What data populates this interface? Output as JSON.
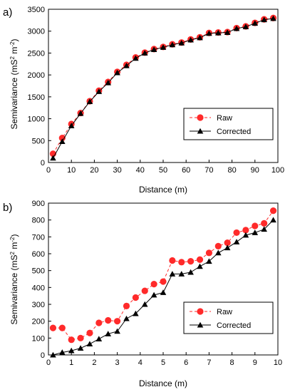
{
  "chart_data": [
    {
      "type": "line",
      "panel_label": "a)",
      "xlabel": "Distance (m)",
      "ylabel_main": "Semivariance (mS",
      "ylabel_sup": "2",
      "ylabel_mid": " m",
      "ylabel_sup2": "-2",
      "ylabel_end": ")",
      "xlim": [
        0,
        100
      ],
      "ylim": [
        0,
        3500
      ],
      "xticks": [
        0,
        10,
        20,
        30,
        40,
        50,
        60,
        70,
        80,
        90,
        100
      ],
      "yticks": [
        0,
        500,
        1000,
        1500,
        2000,
        2500,
        3000,
        3500
      ],
      "grid": false,
      "legend_position": "lower-right",
      "series": [
        {
          "name": "Raw",
          "color": "#ff2a2a",
          "marker": "circle",
          "line": "dashed",
          "x": [
            2,
            6,
            10,
            14,
            18,
            22,
            26,
            30,
            34,
            38,
            42,
            46,
            50,
            54,
            58,
            62,
            66,
            70,
            74,
            78,
            82,
            86,
            90,
            94,
            98
          ],
          "y": [
            200,
            560,
            880,
            1130,
            1400,
            1640,
            1840,
            2070,
            2230,
            2400,
            2510,
            2590,
            2640,
            2700,
            2740,
            2810,
            2860,
            2960,
            2970,
            2980,
            3070,
            3110,
            3190,
            3270,
            3300
          ]
        },
        {
          "name": "Corrected",
          "color": "#000000",
          "marker": "triangle",
          "line": "solid",
          "x": [
            2,
            6,
            10,
            14,
            18,
            22,
            26,
            30,
            34,
            38,
            42,
            46,
            50,
            54,
            58,
            62,
            66,
            70,
            74,
            78,
            82,
            86,
            90,
            94,
            98
          ],
          "y": [
            100,
            480,
            840,
            1120,
            1390,
            1620,
            1820,
            2050,
            2210,
            2380,
            2500,
            2580,
            2630,
            2690,
            2730,
            2800,
            2850,
            2950,
            2960,
            2970,
            3060,
            3100,
            3180,
            3260,
            3290
          ]
        }
      ]
    },
    {
      "type": "line",
      "panel_label": "b)",
      "xlabel": "Distance (m)",
      "ylabel_main": "Semivariance (mS",
      "ylabel_sup": "2",
      "ylabel_mid": " m",
      "ylabel_sup2": "-2",
      "ylabel_end": ")",
      "xlim": [
        0,
        10
      ],
      "ylim": [
        0,
        900
      ],
      "xticks": [
        0,
        1,
        2,
        3,
        4,
        5,
        6,
        7,
        8,
        9,
        10
      ],
      "yticks": [
        0,
        100,
        200,
        300,
        400,
        500,
        600,
        700,
        800,
        900
      ],
      "grid": false,
      "legend_position": "lower-right",
      "series": [
        {
          "name": "Raw",
          "color": "#ff2a2a",
          "marker": "circle",
          "line": "dashed",
          "x": [
            0.2,
            0.6,
            1.0,
            1.4,
            1.8,
            2.2,
            2.6,
            3.0,
            3.4,
            3.8,
            4.2,
            4.6,
            5.0,
            5.4,
            5.8,
            6.2,
            6.6,
            7.0,
            7.4,
            7.8,
            8.2,
            8.6,
            9.0,
            9.4,
            9.8
          ],
          "y": [
            160,
            160,
            90,
            100,
            130,
            190,
            205,
            200,
            290,
            340,
            380,
            420,
            435,
            560,
            550,
            555,
            565,
            605,
            645,
            665,
            725,
            740,
            765,
            780,
            855
          ]
        },
        {
          "name": "Corrected",
          "color": "#000000",
          "marker": "triangle",
          "line": "solid",
          "x": [
            0.2,
            0.6,
            1.0,
            1.4,
            1.8,
            2.2,
            2.6,
            3.0,
            3.4,
            3.8,
            4.2,
            4.6,
            5.0,
            5.4,
            5.8,
            6.2,
            6.6,
            7.0,
            7.4,
            7.8,
            8.2,
            8.6,
            9.0,
            9.4,
            9.8
          ],
          "y": [
            0,
            15,
            25,
            40,
            65,
            95,
            125,
            140,
            215,
            245,
            300,
            355,
            370,
            480,
            480,
            490,
            525,
            555,
            605,
            635,
            670,
            710,
            725,
            745,
            800
          ]
        }
      ]
    }
  ]
}
